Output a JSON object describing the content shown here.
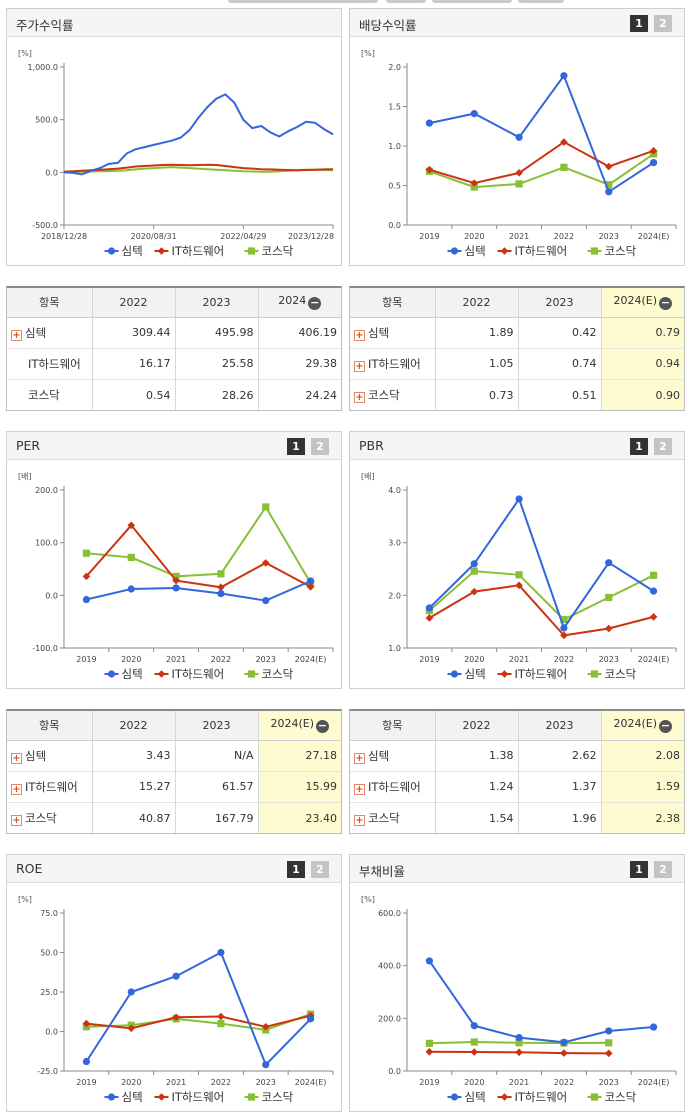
{
  "colors": {
    "simtek": "#3366dd",
    "it": "#cc3311",
    "kosdaq": "#88c035"
  },
  "panels": {
    "stock": {
      "title": "주가수익률",
      "chart": {
        "type": "line",
        "ylabel": "[%]",
        "yticks": [
          "1,000.0",
          "500.0",
          "0.0",
          "-500.0"
        ],
        "ylim": [
          -500,
          1000
        ],
        "xlabels": [
          "2018/12/28",
          "2020/08/31",
          "2022/04/29",
          "2023/12/28"
        ],
        "series": [
          {
            "name": "심텍",
            "values": [
              0,
              -5,
              -20,
              15,
              40,
              80,
              90,
              180,
              220,
              240,
              260,
              280,
              300,
              330,
              400,
              520,
              620,
              700,
              740,
              660,
              500,
              420,
              440,
              380,
              340,
              390,
              430,
              480,
              470,
              410,
              360
            ]
          },
          {
            "name": "IT하드웨어",
            "values": [
              5,
              10,
              15,
              20,
              25,
              30,
              35,
              45,
              55,
              60,
              65,
              70,
              72,
              70,
              68,
              70,
              72,
              70,
              60,
              50,
              40,
              35,
              30,
              28,
              25,
              22,
              20,
              22,
              25,
              28,
              30
            ]
          },
          {
            "name": "코스닥",
            "values": [
              0,
              2,
              5,
              8,
              10,
              12,
              15,
              20,
              28,
              35,
              40,
              45,
              50,
              45,
              40,
              35,
              30,
              25,
              20,
              15,
              10,
              8,
              5,
              5,
              10,
              15,
              20,
              25,
              25,
              22,
              20
            ]
          }
        ]
      }
    },
    "dividend": {
      "title": "배당수익률",
      "page1": "1",
      "page2": "2",
      "chart": {
        "type": "line",
        "ylabel": "[%]",
        "yticks": [
          "2.0",
          "1.5",
          "1.0",
          "0.5",
          "0.0"
        ],
        "ylim": [
          0,
          2
        ],
        "categories": [
          "2019",
          "2020",
          "2021",
          "2022",
          "2023",
          "2024(E)"
        ],
        "series": [
          {
            "name": "심텍",
            "values": [
              1.29,
              1.41,
              1.11,
              1.89,
              0.42,
              0.79
            ]
          },
          {
            "name": "IT하드웨어",
            "values": [
              0.7,
              0.53,
              0.66,
              1.05,
              0.74,
              0.94
            ]
          },
          {
            "name": "코스닥",
            "values": [
              0.68,
              0.48,
              0.52,
              0.73,
              0.51,
              0.9
            ]
          }
        ]
      }
    },
    "per": {
      "title": "PER",
      "page1": "1",
      "page2": "2",
      "chart": {
        "type": "line",
        "ylabel": "[배]",
        "yticks": [
          "200.0",
          "100.0",
          "0.0",
          "-100.0"
        ],
        "ylim": [
          -100,
          200
        ],
        "categories": [
          "2019",
          "2020",
          "2021",
          "2022",
          "2023",
          "2024(E)"
        ],
        "series": [
          {
            "name": "심텍",
            "values": [
              -8,
              12,
              14,
              3.43,
              -10,
              27.18
            ]
          },
          {
            "name": "IT하드웨어",
            "values": [
              36,
              133,
              28,
              15.27,
              61.57,
              15.99
            ]
          },
          {
            "name": "코스닥",
            "values": [
              80,
              72,
              36,
              40.87,
              167.79,
              23.4
            ]
          }
        ]
      }
    },
    "pbr": {
      "title": "PBR",
      "page1": "1",
      "page2": "2",
      "chart": {
        "type": "line",
        "ylabel": "[배]",
        "yticks": [
          "4.0",
          "3.0",
          "2.0",
          "1.0"
        ],
        "ylim": [
          1,
          4
        ],
        "categories": [
          "2019",
          "2020",
          "2021",
          "2022",
          "2023",
          "2024(E)"
        ],
        "series": [
          {
            "name": "심텍",
            "values": [
              1.76,
              2.6,
              3.83,
              1.38,
              2.62,
              2.08
            ]
          },
          {
            "name": "IT하드웨어",
            "values": [
              1.57,
              2.07,
              2.19,
              1.24,
              1.37,
              1.59
            ]
          },
          {
            "name": "코스닥",
            "values": [
              1.71,
              2.46,
              2.39,
              1.54,
              1.96,
              2.38
            ]
          }
        ]
      }
    },
    "roe": {
      "title": "ROE",
      "page1": "1",
      "page2": "2",
      "chart": {
        "type": "line",
        "ylabel": "[%]",
        "yticks": [
          "75.0",
          "50.0",
          "25.0",
          "0.0",
          "-25.0"
        ],
        "ylim": [
          -25,
          75
        ],
        "categories": [
          "2019",
          "2020",
          "2021",
          "2022",
          "2023",
          "2024(E)"
        ],
        "series": [
          {
            "name": "심텍",
            "values": [
              -19,
              25,
              35,
              50,
              -21,
              8
            ]
          },
          {
            "name": "IT하드웨어",
            "values": [
              5,
              2,
              9,
              9.5,
              3,
              10
            ]
          },
          {
            "name": "코스닥",
            "values": [
              3,
              4,
              8,
              5,
              1,
              11
            ]
          }
        ]
      }
    },
    "debt": {
      "title": "부채비율",
      "page1": "1",
      "page2": "2",
      "chart": {
        "type": "line",
        "ylabel": "[%]",
        "yticks": [
          "600.0",
          "400.0",
          "200.0",
          "0.0"
        ],
        "ylim": [
          0,
          600
        ],
        "categories": [
          "2019",
          "2020",
          "2021",
          "2022",
          "2023",
          "2024(E)"
        ],
        "series": [
          {
            "name": "심텍",
            "values": [
              418,
              172,
              127,
              109,
              152,
              167
            ]
          },
          {
            "name": "IT하드웨어",
            "values": [
              73,
              72,
              71,
              68,
              67,
              null
            ]
          },
          {
            "name": "코스닥",
            "values": [
              105,
              110,
              107,
              106,
              107,
              null
            ]
          }
        ]
      }
    }
  },
  "tables": {
    "stock": {
      "headers": [
        "항목",
        "2022",
        "2023",
        "2024"
      ],
      "rows": [
        {
          "name": "심텍",
          "values": [
            "309.44",
            "495.98",
            "406.19"
          ]
        },
        {
          "name": "IT하드웨어",
          "values": [
            "16.17",
            "25.58",
            "29.38"
          ]
        },
        {
          "name": "코스닥",
          "values": [
            "0.54",
            "28.26",
            "24.24"
          ]
        }
      ]
    },
    "dividend": {
      "headers": [
        "항목",
        "2022",
        "2023",
        "2024(E)"
      ],
      "rows": [
        {
          "name": "심텍",
          "values": [
            "1.89",
            "0.42",
            "0.79"
          ]
        },
        {
          "name": "IT하드웨어",
          "values": [
            "1.05",
            "0.74",
            "0.94"
          ]
        },
        {
          "name": "코스닥",
          "values": [
            "0.73",
            "0.51",
            "0.90"
          ]
        }
      ]
    },
    "per": {
      "headers": [
        "항목",
        "2022",
        "2023",
        "2024(E)"
      ],
      "rows": [
        {
          "name": "심텍",
          "values": [
            "3.43",
            "N/A",
            "27.18"
          ]
        },
        {
          "name": "IT하드웨어",
          "values": [
            "15.27",
            "61.57",
            "15.99"
          ]
        },
        {
          "name": "코스닥",
          "values": [
            "40.87",
            "167.79",
            "23.40"
          ]
        }
      ]
    },
    "pbr": {
      "headers": [
        "항목",
        "2022",
        "2023",
        "2024(E)"
      ],
      "rows": [
        {
          "name": "심텍",
          "values": [
            "1.38",
            "2.62",
            "2.08"
          ]
        },
        {
          "name": "IT하드웨어",
          "values": [
            "1.24",
            "1.37",
            "1.59"
          ]
        },
        {
          "name": "코스닥",
          "values": [
            "1.54",
            "1.96",
            "2.38"
          ]
        }
      ]
    }
  }
}
